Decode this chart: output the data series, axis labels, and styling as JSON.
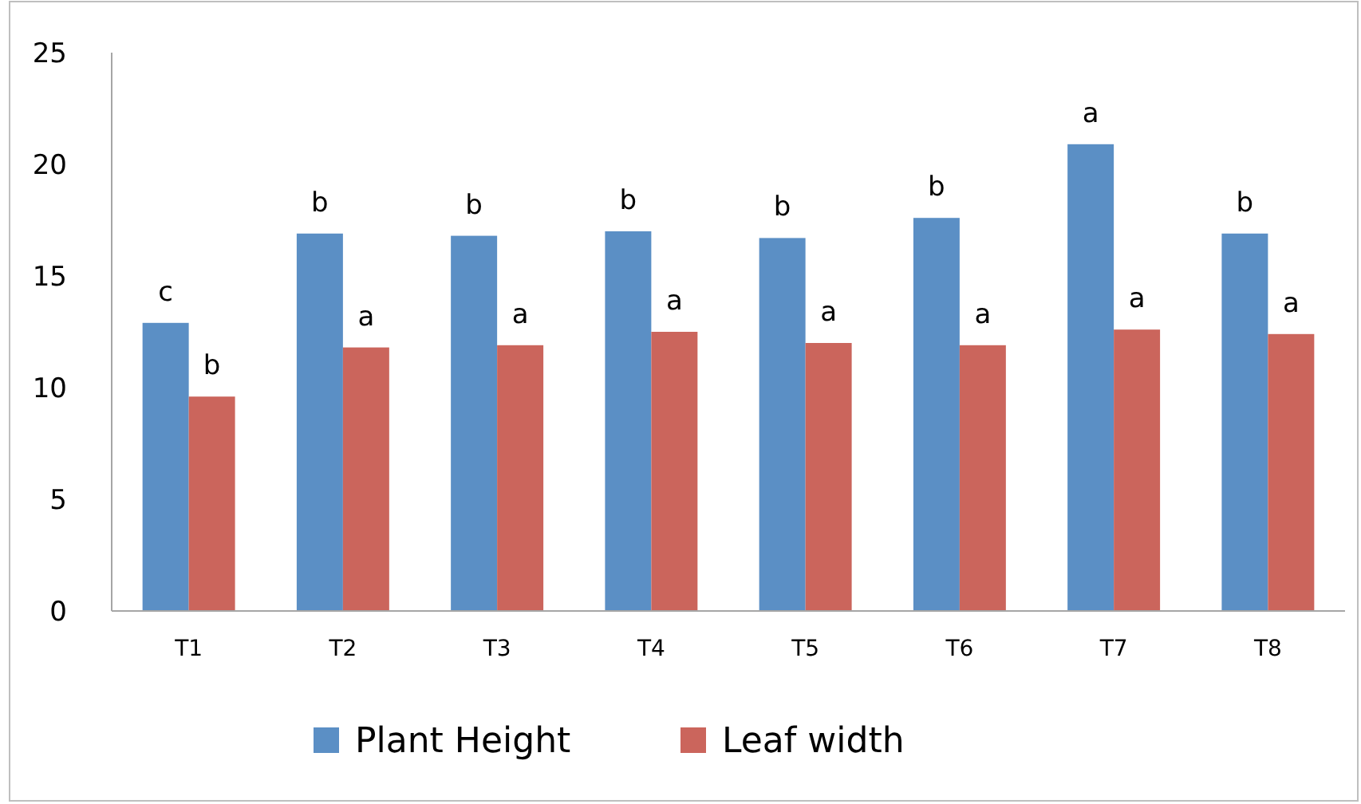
{
  "chart_data": {
    "type": "bar",
    "categories": [
      "T1",
      "T2",
      "T3",
      "T4",
      "T5",
      "T6",
      "T7",
      "T8"
    ],
    "series": [
      {
        "name": "Plant Height",
        "color": "#5b8fc5",
        "values": [
          12.9,
          16.9,
          16.8,
          17.0,
          16.7,
          17.6,
          20.9,
          16.9
        ]
      },
      {
        "name": "Leaf width",
        "color": "#cb655c",
        "values": [
          9.6,
          11.8,
          11.9,
          12.5,
          12.0,
          11.9,
          12.6,
          12.4
        ]
      }
    ],
    "ylim": [
      0,
      25
    ],
    "yticks": [
      0,
      5,
      10,
      15,
      20,
      25
    ],
    "grid": false,
    "legend": "bottom",
    "annotations": [
      {
        "text": "c",
        "x": "T1",
        "y": 12.9
      },
      {
        "text": "b",
        "x": "T1",
        "y": 9.6
      },
      {
        "text": "b",
        "x": "T2",
        "y": 16.9
      },
      {
        "text": "a",
        "x": "T2",
        "y": 11.8
      },
      {
        "text": "b",
        "x": "T3",
        "y": 16.8
      },
      {
        "text": "a",
        "x": "T3",
        "y": 11.9
      },
      {
        "text": "b",
        "x": "T4",
        "y": 17.0
      },
      {
        "text": "a",
        "x": "T4",
        "y": 12.5
      },
      {
        "text": "b",
        "x": "T5",
        "y": 16.7
      },
      {
        "text": "a",
        "x": "T5",
        "y": 12.0
      },
      {
        "text": "b",
        "x": "T6",
        "y": 17.6
      },
      {
        "text": "a",
        "x": "T6",
        "y": 11.9
      },
      {
        "text": "a",
        "x": "T7",
        "y": 20.9
      },
      {
        "text": "a",
        "x": "T7",
        "y": 12.6
      },
      {
        "text": "b",
        "x": "T8",
        "y": 16.9
      },
      {
        "text": "a",
        "x": "T8",
        "y": 12.4
      }
    ]
  }
}
